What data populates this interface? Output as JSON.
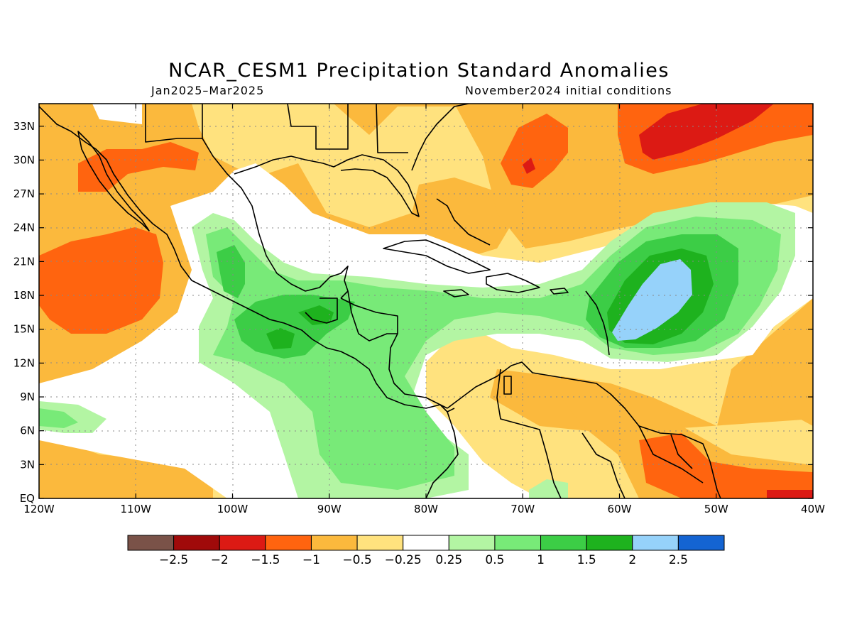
{
  "title": "NCAR_CESM1 Precipitation Standard Anomalies",
  "period": "Jan2025–Mar2025",
  "initial_conditions": "November2024 initial conditions",
  "map": {
    "lon_range": [
      -120,
      -40
    ],
    "lat_range": [
      0,
      35
    ],
    "lon_ticks": [
      {
        "value": -120,
        "label": "120W"
      },
      {
        "value": -110,
        "label": "110W"
      },
      {
        "value": -100,
        "label": "100W"
      },
      {
        "value": -90,
        "label": "90W"
      },
      {
        "value": -80,
        "label": "80W"
      },
      {
        "value": -70,
        "label": "70W"
      },
      {
        "value": -60,
        "label": "60W"
      },
      {
        "value": -50,
        "label": "50W"
      },
      {
        "value": -40,
        "label": "40W"
      }
    ],
    "lat_ticks": [
      {
        "value": 0,
        "label": "EQ"
      },
      {
        "value": 3,
        "label": "3N"
      },
      {
        "value": 6,
        "label": "6N"
      },
      {
        "value": 9,
        "label": "9N"
      },
      {
        "value": 12,
        "label": "12N"
      },
      {
        "value": 15,
        "label": "15N"
      },
      {
        "value": 18,
        "label": "18N"
      },
      {
        "value": 21,
        "label": "21N"
      },
      {
        "value": 24,
        "label": "24N"
      },
      {
        "value": 27,
        "label": "27N"
      },
      {
        "value": 30,
        "label": "30N"
      },
      {
        "value": 33,
        "label": "33N"
      }
    ],
    "grid": "dotted"
  },
  "colorbar": {
    "colors": [
      "#7a5248",
      "#a00a0a",
      "#dc1a14",
      "#ff640f",
      "#fbb93d",
      "#ffe27e",
      "#ffffff",
      "#b3f5a3",
      "#78ea78",
      "#3ccd46",
      "#1eb21e",
      "#96d2fa",
      "#1464d2"
    ],
    "labels": [
      "−2.5",
      "−2",
      "−1.5",
      "−1",
      "−0.5",
      "−0.25",
      "0.25",
      "0.5",
      "1",
      "1.5",
      "2",
      "2.5"
    ]
  }
}
